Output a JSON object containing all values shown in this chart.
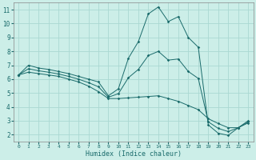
{
  "xlabel": "Humidex (Indice chaleur)",
  "bg_color": "#cceee8",
  "grid_color": "#aad8d2",
  "line_color": "#1a6b6b",
  "xlim": [
    -0.5,
    23.5
  ],
  "ylim": [
    1.5,
    11.5
  ],
  "xticks": [
    0,
    1,
    2,
    3,
    4,
    5,
    6,
    7,
    8,
    9,
    10,
    11,
    12,
    13,
    14,
    15,
    16,
    17,
    18,
    19,
    20,
    21,
    22,
    23
  ],
  "yticks": [
    2,
    3,
    4,
    5,
    6,
    7,
    8,
    9,
    10,
    11
  ],
  "line1_x": [
    0,
    1,
    2,
    3,
    4,
    5,
    6,
    7,
    8,
    9,
    10,
    11,
    12,
    13,
    14,
    15,
    16,
    17,
    18,
    19,
    20,
    21,
    22,
    23
  ],
  "line1_y": [
    6.3,
    7.0,
    6.8,
    6.7,
    6.55,
    6.4,
    6.2,
    6.0,
    5.8,
    4.8,
    5.3,
    7.5,
    8.7,
    10.7,
    11.2,
    10.15,
    10.5,
    9.0,
    8.3,
    2.7,
    2.1,
    1.95,
    2.5,
    3.0
  ],
  "line2_x": [
    0,
    1,
    2,
    3,
    4,
    5,
    6,
    7,
    8,
    9,
    10,
    11,
    12,
    13,
    14,
    15,
    16,
    17,
    18,
    19,
    20,
    21,
    22,
    23
  ],
  "line2_y": [
    6.3,
    6.5,
    6.4,
    6.3,
    6.2,
    6.0,
    5.8,
    5.5,
    5.1,
    4.6,
    4.6,
    4.65,
    4.7,
    4.75,
    4.8,
    4.6,
    4.4,
    4.1,
    3.8,
    3.15,
    2.8,
    2.5,
    2.5,
    2.85
  ],
  "line3_x": [
    0,
    1,
    2,
    3,
    4,
    5,
    6,
    7,
    8,
    9,
    10,
    11,
    12,
    13,
    14,
    15,
    16,
    17,
    18,
    19,
    20,
    21,
    22,
    23
  ],
  "line3_y": [
    6.3,
    6.75,
    6.6,
    6.5,
    6.37,
    6.2,
    6.0,
    5.75,
    5.45,
    4.7,
    4.95,
    6.1,
    6.7,
    7.7,
    8.0,
    7.37,
    7.45,
    6.55,
    6.05,
    2.92,
    2.45,
    2.22,
    2.5,
    2.92
  ]
}
